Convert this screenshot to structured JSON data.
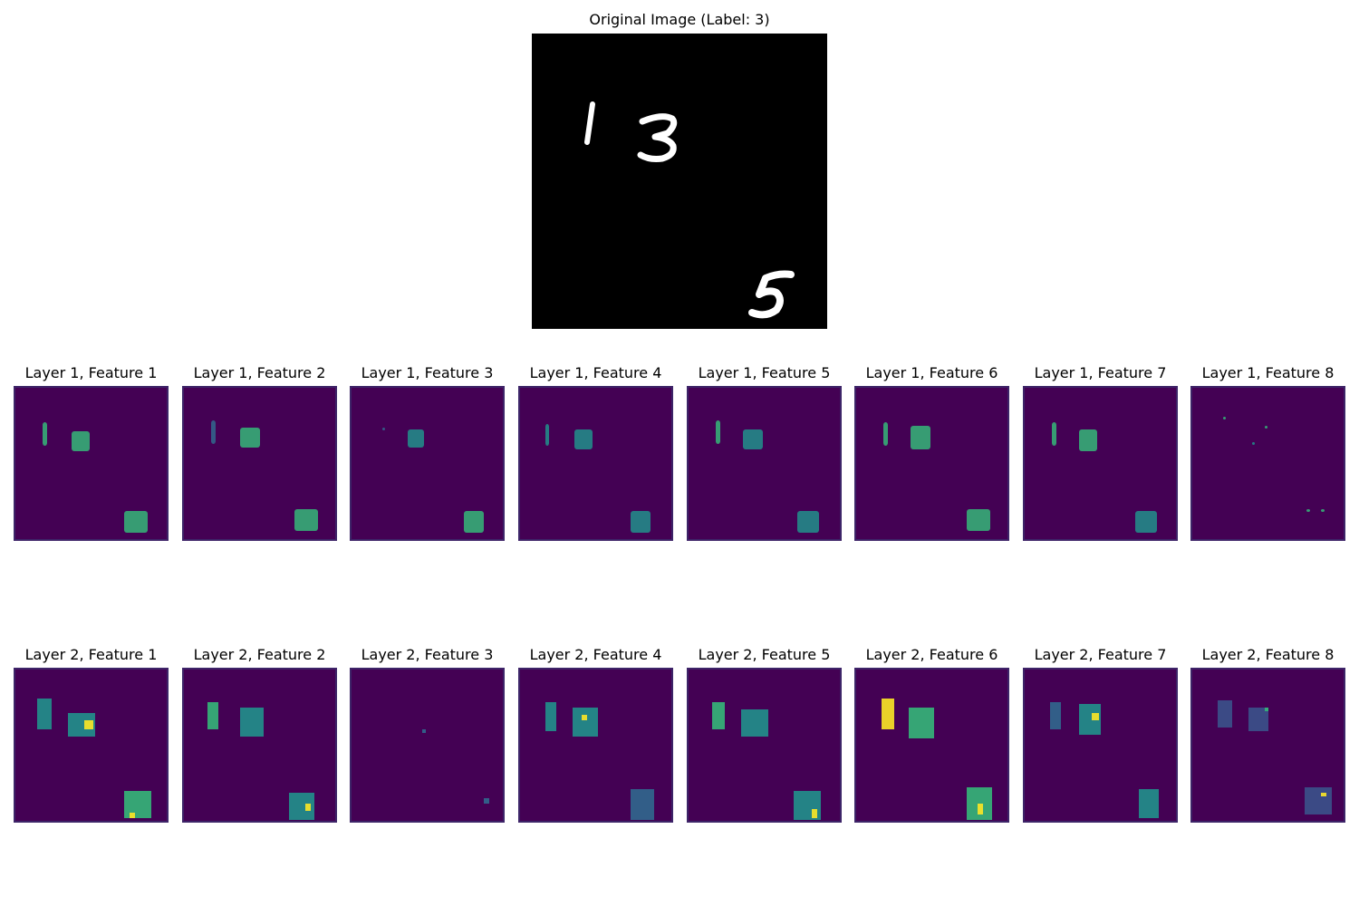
{
  "original": {
    "title": "Original Image (Label: 3)"
  },
  "layer1": [
    "Layer 1, Feature 1",
    "Layer 1, Feature 2",
    "Layer 1, Feature 3",
    "Layer 1, Feature 4",
    "Layer 1, Feature 5",
    "Layer 1, Feature 6",
    "Layer 1, Feature 7",
    "Layer 1, Feature 8"
  ],
  "layer2": [
    "Layer 2, Feature 1",
    "Layer 2, Feature 2",
    "Layer 2, Feature 3",
    "Layer 2, Feature 4",
    "Layer 2, Feature 5",
    "Layer 2, Feature 6",
    "Layer 2, Feature 7",
    "Layer 2, Feature 8"
  ],
  "colors": {
    "viridis_dark": "#440154",
    "viridis_blue": "#31688e",
    "viridis_teal": "#21918c",
    "viridis_green": "#35b779",
    "viridis_yellow": "#fde725",
    "digit_stroke": "#ffffff",
    "image_background": "#000000"
  }
}
